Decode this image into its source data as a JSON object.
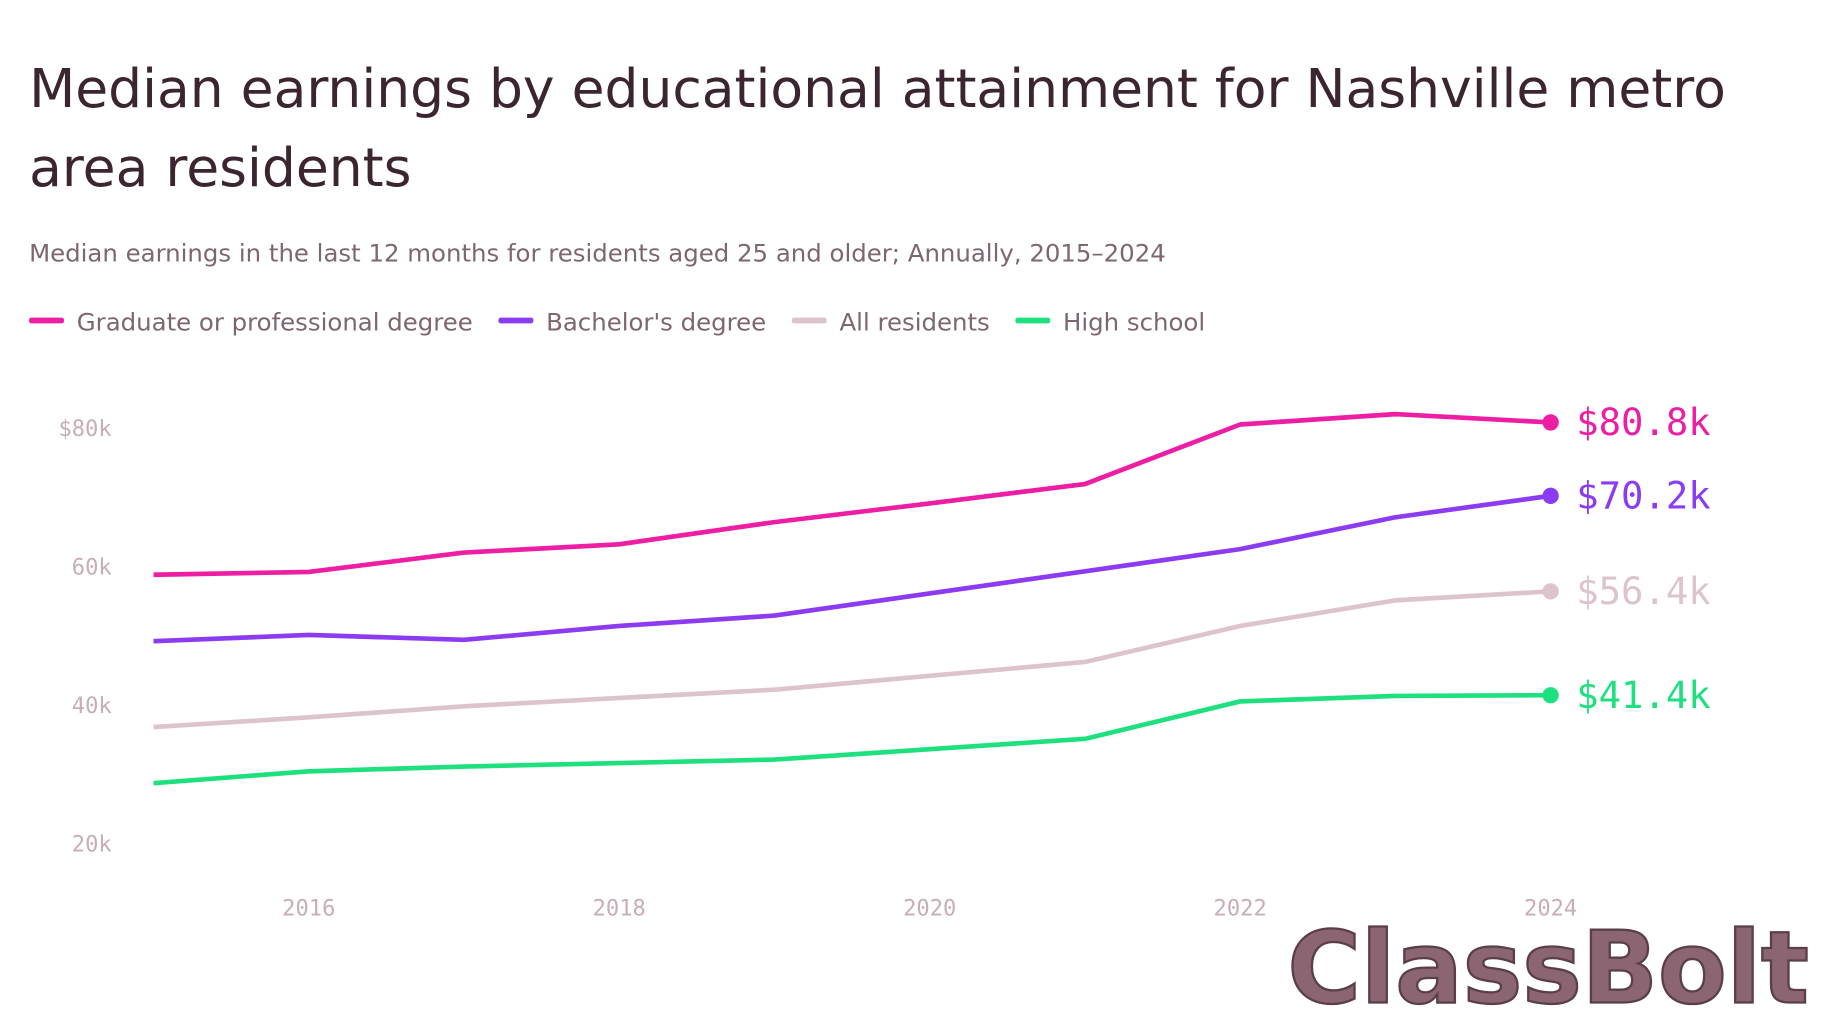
{
  "chart_data": {
    "type": "line",
    "title": "Median earnings by educational attainment for Nashville metro area residents",
    "subtitle": "Median earnings in the last 12 months for residents aged 25 and older; Annually, 2015–2024",
    "x": [
      2015,
      2016,
      2017,
      2018,
      2019,
      2020,
      2021,
      2022,
      2023,
      2024
    ],
    "xlim": [
      2015,
      2024
    ],
    "xticks": [
      2016,
      2018,
      2020,
      2022,
      2024
    ],
    "ylim": [
      20000,
      82000
    ],
    "yticks": [
      {
        "value": 20000,
        "label": "20k"
      },
      {
        "value": 40000,
        "label": "40k"
      },
      {
        "value": 60000,
        "label": "60k"
      },
      {
        "value": 80000,
        "label": "$80k"
      }
    ],
    "grid": false,
    "legend": "top",
    "series": [
      {
        "name": "Graduate or professional degree",
        "color": "#ee1ea4",
        "values": [
          58800,
          59200,
          62000,
          63200,
          66400,
          69100,
          71900,
          80500,
          82000,
          80800
        ],
        "value_labels": [
          null,
          null,
          null,
          null,
          null,
          null,
          null,
          null,
          null,
          "$80.8k"
        ]
      },
      {
        "name": "Bachelor's degree",
        "color": "#8b3cf2",
        "values": [
          49200,
          50100,
          49400,
          51400,
          52900,
          56100,
          59300,
          62500,
          67100,
          70200
        ],
        "value_labels": [
          null,
          null,
          null,
          null,
          null,
          null,
          null,
          null,
          null,
          "$70.2k"
        ]
      },
      {
        "name": "All residents",
        "color": "#ddc3cc",
        "values": [
          36800,
          38200,
          39800,
          41000,
          42200,
          44200,
          46200,
          51400,
          55100,
          56400
        ],
        "value_labels": [
          null,
          null,
          null,
          null,
          null,
          null,
          null,
          null,
          null,
          "$56.4k"
        ]
      },
      {
        "name": "High school",
        "color": "#1fe07f",
        "values": [
          28700,
          30400,
          31100,
          31600,
          32100,
          33600,
          35100,
          40500,
          41300,
          41400
        ],
        "value_labels": [
          null,
          null,
          null,
          null,
          null,
          null,
          null,
          null,
          null,
          "$41.4k"
        ]
      }
    ],
    "watermark": "ClassBolt"
  }
}
